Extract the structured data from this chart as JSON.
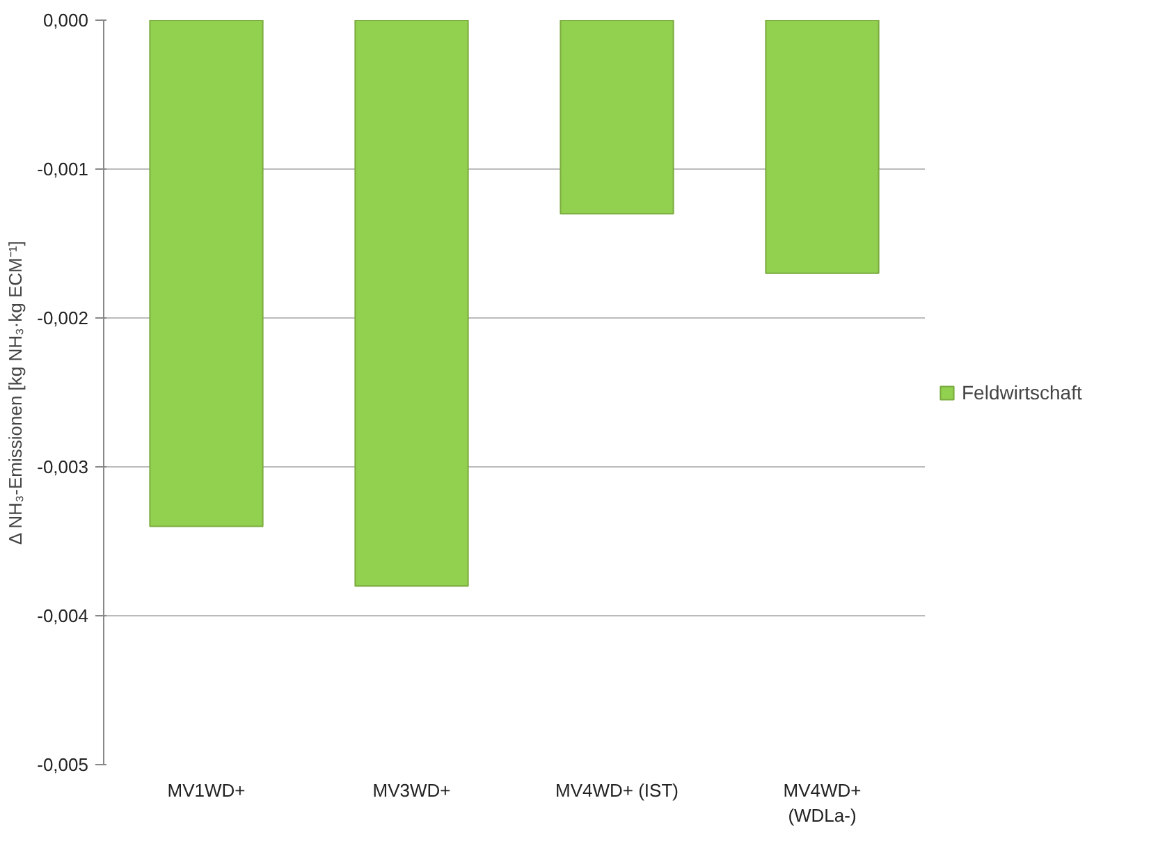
{
  "chart_data": {
    "type": "bar",
    "ylabel": "Δ NH₃-Emissionen [kg NH₃·kg ECM⁻¹]",
    "categories": [
      "MV1WD+",
      "MV3WD+",
      "MV4WD+ (IST)",
      "MV4WD+\n(WDLa-)"
    ],
    "series": [
      {
        "name": "Feldwirtschaft",
        "color": "#92d050",
        "values": [
          -0.0034,
          -0.0038,
          -0.0013,
          -0.0017
        ]
      }
    ],
    "ylim": [
      -0.005,
      0
    ],
    "yticks": [
      {
        "value": -0.005,
        "label": "-0,005"
      },
      {
        "value": -0.004,
        "label": "-0,004"
      },
      {
        "value": -0.003,
        "label": "-0,003"
      },
      {
        "value": -0.002,
        "label": "-0,002"
      },
      {
        "value": -0.001,
        "label": "-0,001"
      },
      {
        "value": 0,
        "label": "0,000"
      }
    ],
    "grid": "y",
    "legend": "right"
  }
}
